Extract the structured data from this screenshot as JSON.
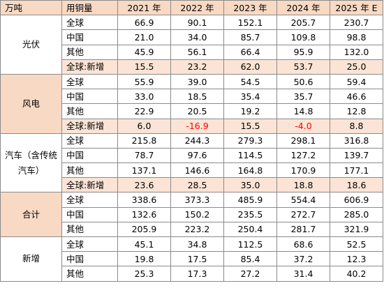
{
  "header": {
    "unit": "万吨",
    "metric": "用铜量",
    "years": [
      "2021 年",
      "2022 年",
      "2023 年",
      "2024 年",
      "2025 年 E"
    ]
  },
  "groups": [
    {
      "label": "光伏",
      "shaded": false,
      "rows": [
        {
          "metric": "全球",
          "values": [
            "66.9",
            "90.1",
            "152.1",
            "205.7",
            "230.7"
          ],
          "shaded": false
        },
        {
          "metric": "中国",
          "values": [
            "21.0",
            "34.0",
            "85.7",
            "109.8",
            "98.8"
          ],
          "shaded": false
        },
        {
          "metric": "其他",
          "values": [
            "45.9",
            "56.1",
            "66.4",
            "95.9",
            "132.0"
          ],
          "shaded": false
        },
        {
          "metric": "全球:新增",
          "values": [
            "15.5",
            "23.2",
            "62.0",
            "53.7",
            "25.0"
          ],
          "shaded": true
        }
      ]
    },
    {
      "label": "风电",
      "shaded": true,
      "rows": [
        {
          "metric": "全球",
          "values": [
            "55.9",
            "39.0",
            "54.5",
            "50.6",
            "59.4"
          ],
          "shaded": false
        },
        {
          "metric": "中国",
          "values": [
            "33.0",
            "18.5",
            "35.4",
            "35.7",
            "46.6"
          ],
          "shaded": false
        },
        {
          "metric": "其他",
          "values": [
            "22.9",
            "20.5",
            "19.2",
            "14.8",
            "12.8"
          ],
          "shaded": false
        },
        {
          "metric": "全球:新增",
          "values": [
            "6.0",
            "-16.9",
            "15.5",
            "-4.0",
            "8.8"
          ],
          "shaded": true
        }
      ]
    },
    {
      "label": "汽车（含传统汽车）",
      "shaded": false,
      "rows": [
        {
          "metric": "全球",
          "values": [
            "215.8",
            "244.3",
            "279.3",
            "298.1",
            "316.8"
          ],
          "shaded": false
        },
        {
          "metric": "中国",
          "values": [
            "78.7",
            "97.6",
            "114.5",
            "127.2",
            "139.7"
          ],
          "shaded": false
        },
        {
          "metric": "其他",
          "values": [
            "137.1",
            "146.6",
            "164.8",
            "170.9",
            "177.1"
          ],
          "shaded": false
        },
        {
          "metric": "全球:新增",
          "values": [
            "23.6",
            "28.5",
            "35.0",
            "18.8",
            "18.6"
          ],
          "shaded": true
        }
      ]
    },
    {
      "label": "合计",
      "shaded": true,
      "rows": [
        {
          "metric": "全球",
          "values": [
            "338.6",
            "373.3",
            "485.9",
            "554.4",
            "606.9"
          ],
          "shaded": false
        },
        {
          "metric": "中国",
          "values": [
            "132.6",
            "150.2",
            "235.5",
            "272.7",
            "285.0"
          ],
          "shaded": false
        },
        {
          "metric": "其他",
          "values": [
            "205.9",
            "223.2",
            "250.4",
            "281.7",
            "321.9"
          ],
          "shaded": false
        }
      ]
    },
    {
      "label": "新增",
      "shaded": false,
      "rows": [
        {
          "metric": "全球",
          "values": [
            "45.1",
            "34.8",
            "112.5",
            "68.6",
            "52.5"
          ],
          "shaded": false
        },
        {
          "metric": "中国",
          "values": [
            "19.8",
            "17.5",
            "85.4",
            "37.2",
            "12.3"
          ],
          "shaded": false
        },
        {
          "metric": "其他",
          "values": [
            "25.3",
            "17.3",
            "27.2",
            "31.4",
            "40.2"
          ],
          "shaded": false
        }
      ]
    }
  ]
}
